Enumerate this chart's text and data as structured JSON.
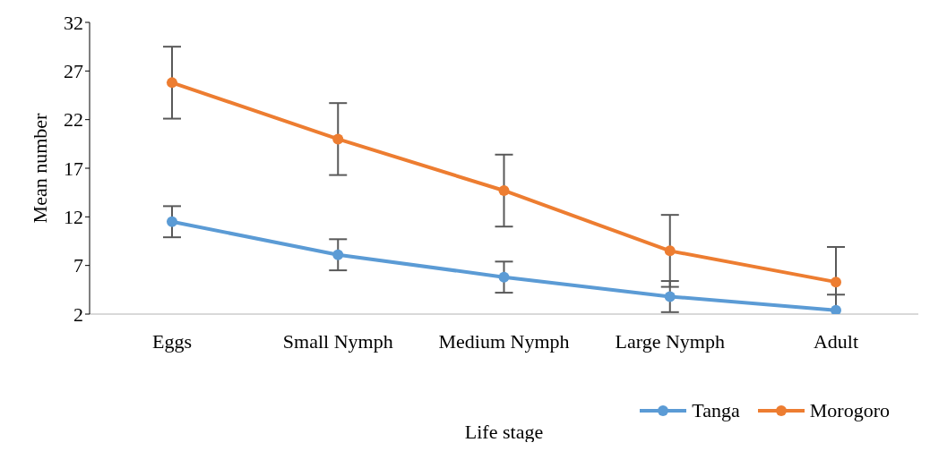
{
  "chart_data": {
    "type": "line",
    "xlabel": "Life stage",
    "ylabel": "Mean number",
    "categories": [
      "Eggs",
      "Small Nymph",
      "Medium Nymph",
      "Large Nymph",
      "Adult"
    ],
    "series": [
      {
        "name": "Tanga",
        "color": "#5b9bd5",
        "values": [
          11.5,
          8.1,
          5.8,
          3.8,
          2.4
        ],
        "errors": [
          1.6,
          1.6,
          1.6,
          1.6,
          [
            2,
            4
          ]
        ]
      },
      {
        "name": "Morogoro",
        "color": "#ed7d31",
        "values": [
          25.8,
          20.0,
          14.7,
          8.5,
          5.3
        ],
        "errors": [
          3.7,
          3.7,
          3.7,
          3.7,
          [
            2,
            8.9
          ]
        ]
      }
    ],
    "ylim": [
      2,
      32
    ],
    "yticks": [
      2,
      7,
      12,
      17,
      22,
      27,
      32
    ],
    "grid": false,
    "legend": "bottom right",
    "marker": "circle",
    "line_style": "solid"
  }
}
